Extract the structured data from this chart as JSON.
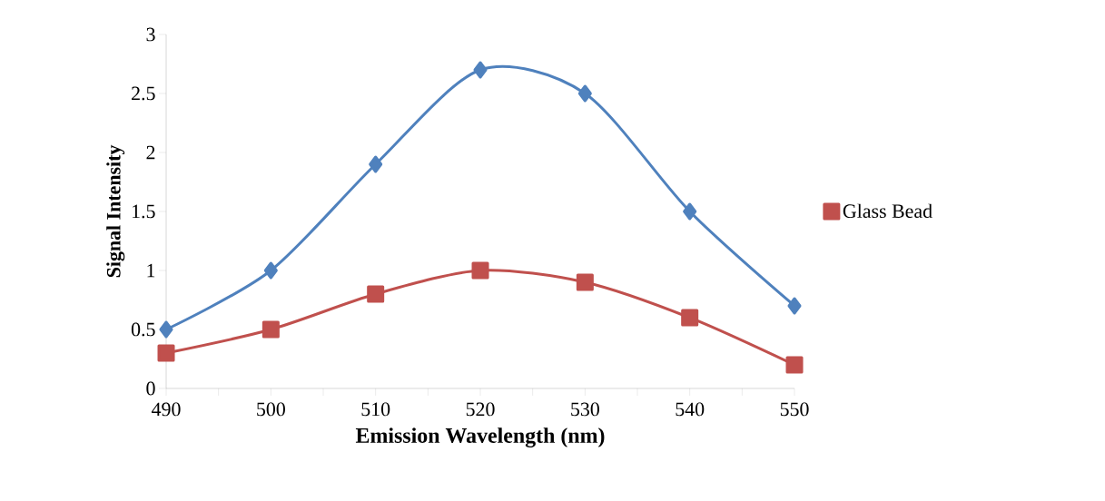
{
  "chart_data": {
    "type": "line",
    "xlabel": "Emission Wavelength (nm)",
    "ylabel": "Signal Intensity",
    "x": [
      490,
      500,
      510,
      520,
      530,
      540,
      550
    ],
    "series": [
      {
        "color": "#4f81bd",
        "marker": "diamond",
        "values": [
          0.5,
          1.0,
          1.9,
          2.7,
          2.5,
          1.5,
          0.7
        ]
      },
      {
        "name": "Glass Bead",
        "color": "#c0504d",
        "marker": "square",
        "values": [
          0.3,
          0.5,
          0.8,
          1.0,
          0.9,
          0.6,
          0.2
        ]
      }
    ],
    "xlim": [
      490,
      550
    ],
    "xticks": [
      490,
      500,
      510,
      520,
      530,
      540,
      550
    ],
    "ylim": [
      0,
      3
    ],
    "yticks": [
      0,
      0.5,
      1,
      1.5,
      2,
      2.5,
      3
    ],
    "grid": false,
    "legend": "right",
    "line_style": "solid"
  }
}
